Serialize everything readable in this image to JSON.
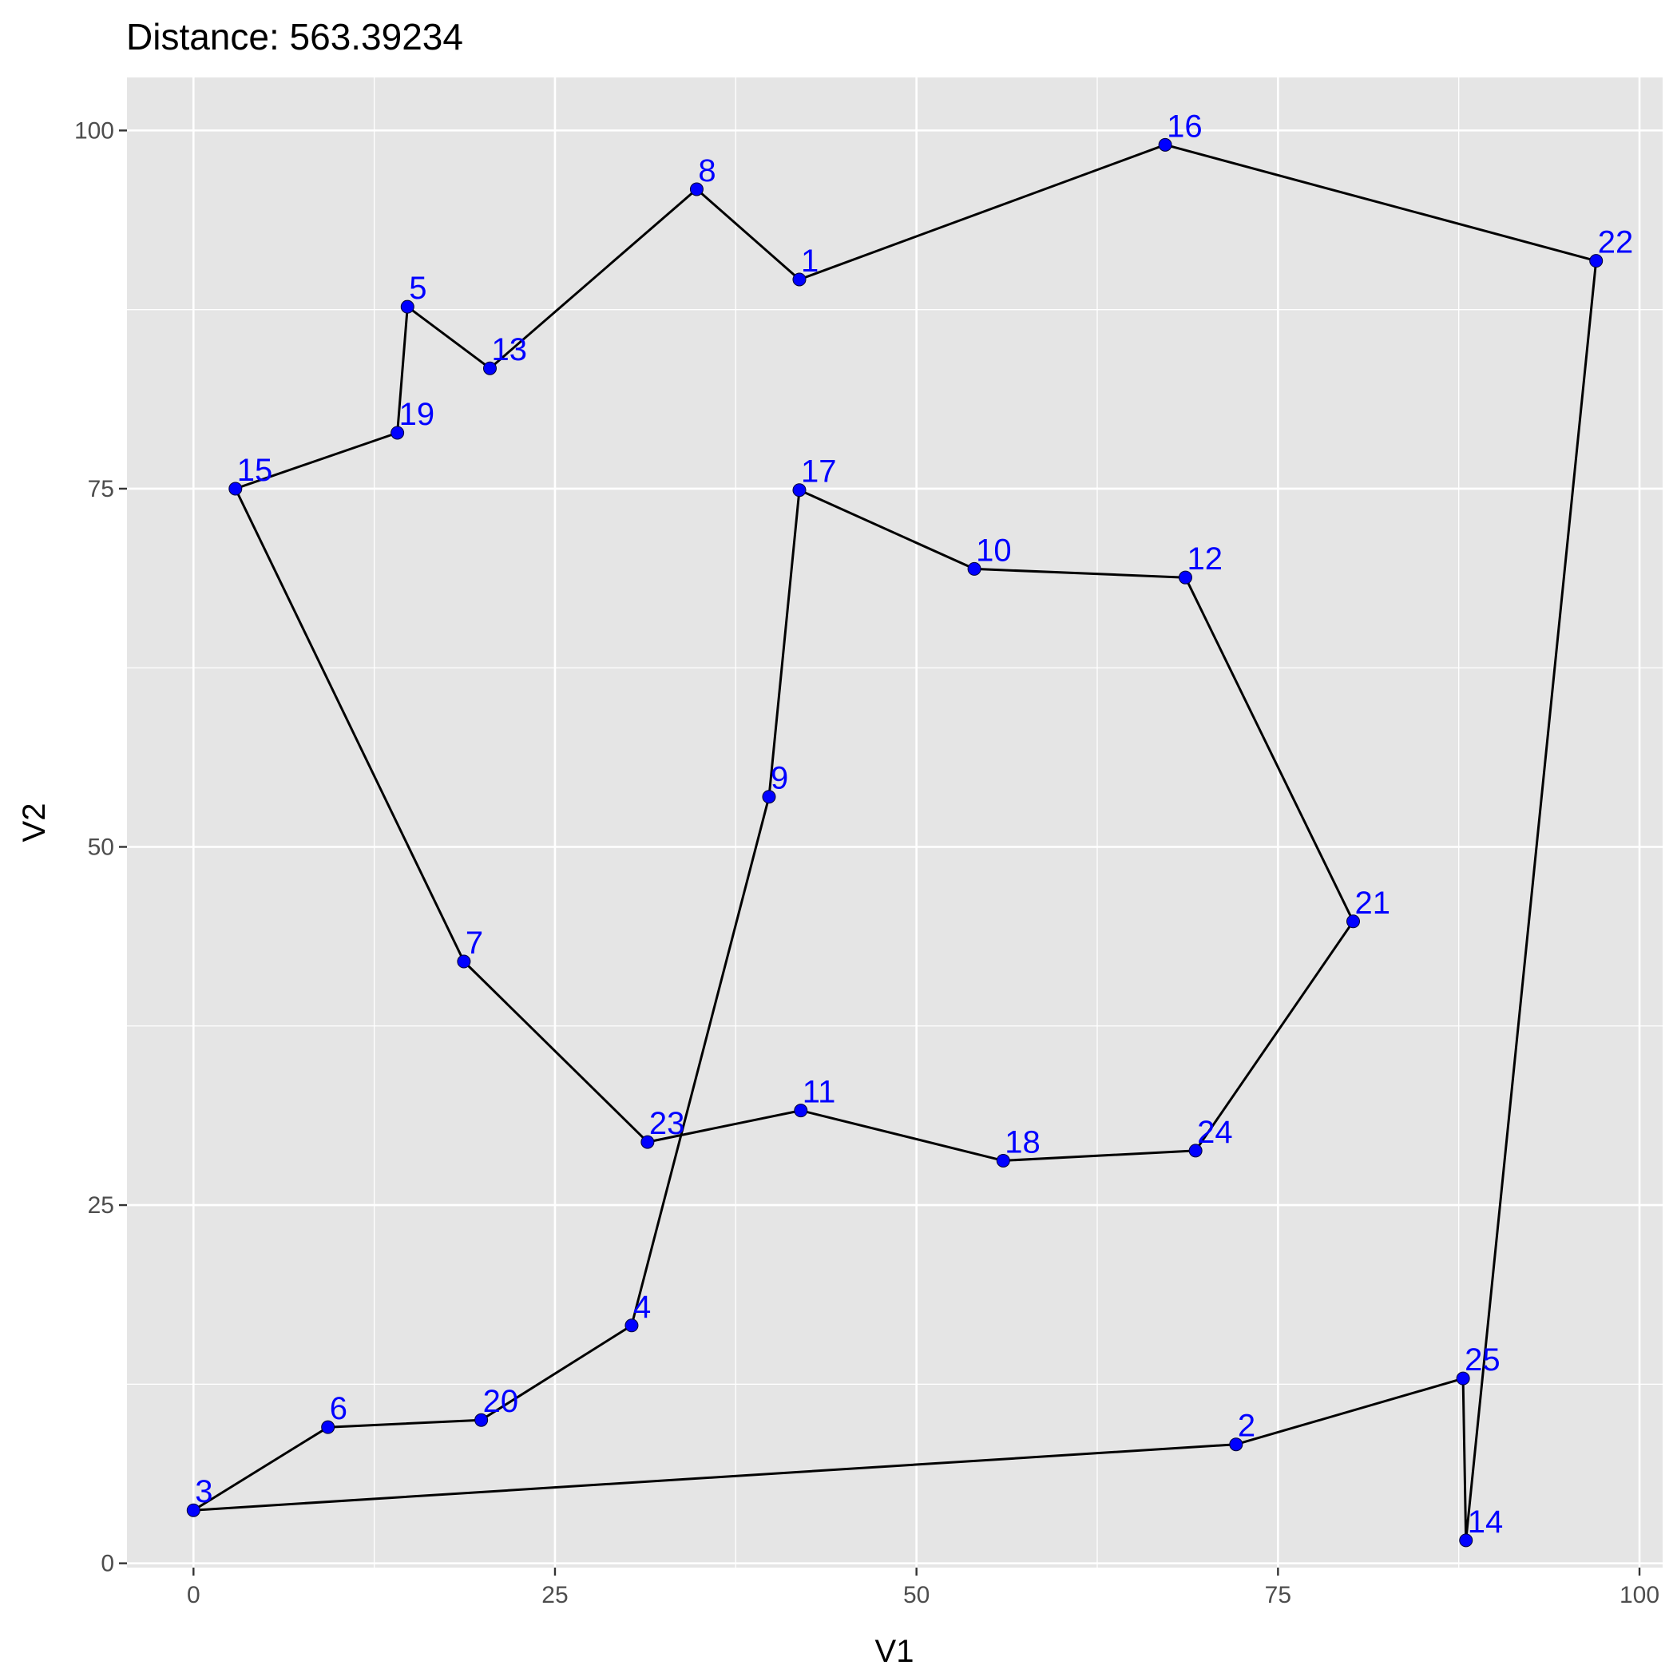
{
  "chart_data": {
    "type": "scatter",
    "title": "Distance: 563.39234",
    "xlabel": "V1",
    "ylabel": "V2",
    "xlim": [
      -4.6,
      101.6
    ],
    "ylim": [
      -0.3,
      103.7
    ],
    "x_ticks": [
      0,
      25,
      50,
      75,
      100
    ],
    "y_ticks": [
      0,
      25,
      50,
      75,
      100
    ],
    "grid": true,
    "background_color": "#e5e5e5",
    "grid_color": "#ffffff",
    "point_color": "#0000ff",
    "label_color": "#0000ff",
    "path_color": "#000000",
    "points": [
      {
        "label": "1",
        "x": 41.9,
        "y": 89.6
      },
      {
        "label": "2",
        "x": 72.1,
        "y": 8.3
      },
      {
        "label": "3",
        "x": 0.0,
        "y": 3.7
      },
      {
        "label": "4",
        "x": 30.3,
        "y": 16.6
      },
      {
        "label": "5",
        "x": 14.8,
        "y": 87.7
      },
      {
        "label": "6",
        "x": 9.3,
        "y": 9.5
      },
      {
        "label": "7",
        "x": 18.7,
        "y": 42.0
      },
      {
        "label": "8",
        "x": 34.8,
        "y": 95.9
      },
      {
        "label": "9",
        "x": 39.8,
        "y": 53.5
      },
      {
        "label": "10",
        "x": 54.0,
        "y": 69.4
      },
      {
        "label": "11",
        "x": 42.0,
        "y": 31.6
      },
      {
        "label": "12",
        "x": 68.6,
        "y": 68.8
      },
      {
        "label": "13",
        "x": 20.5,
        "y": 83.4
      },
      {
        "label": "14",
        "x": 88.0,
        "y": 1.6
      },
      {
        "label": "15",
        "x": 2.9,
        "y": 75.0
      },
      {
        "label": "16",
        "x": 67.2,
        "y": 99.0
      },
      {
        "label": "17",
        "x": 41.9,
        "y": 74.9
      },
      {
        "label": "18",
        "x": 56.0,
        "y": 28.1
      },
      {
        "label": "19",
        "x": 14.1,
        "y": 78.9
      },
      {
        "label": "20",
        "x": 19.9,
        "y": 10.0
      },
      {
        "label": "21",
        "x": 80.2,
        "y": 44.8
      },
      {
        "label": "22",
        "x": 97.0,
        "y": 90.9
      },
      {
        "label": "23",
        "x": 31.4,
        "y": 29.4
      },
      {
        "label": "24",
        "x": 69.3,
        "y": 28.8
      },
      {
        "label": "25",
        "x": 87.8,
        "y": 12.9
      }
    ],
    "tour": [
      16,
      22,
      14,
      25,
      2,
      3,
      6,
      20,
      4,
      9,
      17,
      10,
      12,
      21,
      24,
      18,
      11,
      23,
      7,
      15,
      19,
      5,
      13,
      8,
      1,
      16
    ]
  }
}
